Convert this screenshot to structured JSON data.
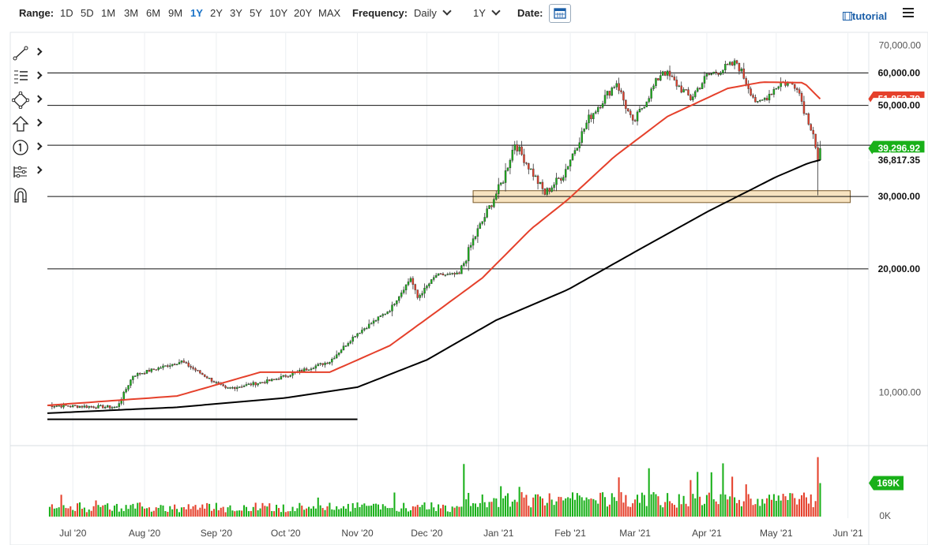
{
  "toolbar": {
    "range_label": "Range:",
    "ranges": [
      "1D",
      "5D",
      "1M",
      "3M",
      "6M",
      "9M",
      "1Y",
      "2Y",
      "3Y",
      "5Y",
      "10Y",
      "20Y",
      "MAX"
    ],
    "active_range": "1Y",
    "frequency_label": "Frequency:",
    "frequency_value": "Daily",
    "period_value": "1Y",
    "date_label": "Date:",
    "tutorial_label": "tutorial"
  },
  "drawing_tools": [
    "line-tool-icon",
    "fib-tool-icon",
    "shape-tool-icon",
    "arrow-up-tool-icon",
    "numbered-marker-icon",
    "ruler-tool-icon",
    "magnet-icon"
  ],
  "colors": {
    "up": "#19b019",
    "down": "#e5402b",
    "ma50": "#e5402b",
    "ma200": "#000000",
    "zone": "#f7e3c0",
    "accent": "#1a73c8"
  },
  "chart_data": [
    {
      "type": "candlestick",
      "y_scale": "log",
      "ylim": [
        8000,
        75000
      ],
      "price_ticks": [
        "70,000.00",
        "60,000.00",
        "50,000.00",
        "10,000.00"
      ],
      "x_ticks": [
        "Jul '20",
        "Aug '20",
        "Sep '20",
        "Oct '20",
        "Nov '20",
        "Dec '20",
        "Jan '21",
        "Feb '21",
        "Mar '21",
        "Apr '21",
        "May '21",
        "Jun '21"
      ],
      "x_range": [
        "2020-06-20",
        "2021-06-10"
      ],
      "horizontal_lines": [
        60000,
        50000,
        40000,
        30000,
        20000
      ],
      "support_zone": {
        "from": 29000,
        "to": 31000,
        "start": "2020-12-21",
        "end": "2021-06-02"
      },
      "trendline": {
        "start": "2020-06-20",
        "end": "2020-11-01",
        "value": 8600
      },
      "price_labels": [
        {
          "text": "60,000.00",
          "value": 60000,
          "style": "level"
        },
        {
          "text": "51,853.79",
          "value": 51853.79,
          "style": "ma50"
        },
        {
          "text": "50,000.00",
          "value": 50000,
          "style": "level"
        },
        {
          "text": "39,296.92",
          "value": 39296.92,
          "style": "last"
        },
        {
          "text": "36,817.35",
          "value": 36817.35,
          "style": "level"
        },
        {
          "text": "30,000.00",
          "value": 30000,
          "style": "level"
        },
        {
          "text": "20,000.00",
          "value": 20000,
          "style": "level"
        }
      ],
      "series": [
        {
          "name": "",
          "kind": "ohlc_anchors",
          "points": [
            [
              "2020-06-20",
              9300
            ],
            [
              "2020-07-20",
              9200
            ],
            [
              "2020-07-27",
              11000
            ],
            [
              "2020-08-17",
              11900
            ],
            [
              "2020-09-05",
              10200
            ],
            [
              "2020-09-25",
              10700
            ],
            [
              "2020-10-20",
              11900
            ],
            [
              "2020-10-31",
              13800
            ],
            [
              "2020-11-15",
              15900
            ],
            [
              "2020-11-24",
              19000
            ],
            [
              "2020-11-27",
              17000
            ],
            [
              "2020-12-05",
              19300
            ],
            [
              "2020-12-15",
              19400
            ],
            [
              "2020-12-21",
              23500
            ],
            [
              "2021-01-03",
              33000
            ],
            [
              "2021-01-08",
              40500
            ],
            [
              "2021-01-21",
              30500
            ],
            [
              "2021-01-29",
              34000
            ],
            [
              "2021-02-09",
              46500
            ],
            [
              "2021-02-21",
              57000
            ],
            [
              "2021-02-28",
              45000
            ],
            [
              "2021-03-13",
              61000
            ],
            [
              "2021-03-25",
              52000
            ],
            [
              "2021-04-01",
              59000
            ],
            [
              "2021-04-14",
              63500
            ],
            [
              "2021-04-23",
              50000
            ],
            [
              "2021-05-03",
              57000
            ],
            [
              "2021-05-10",
              56000
            ],
            [
              "2021-05-13",
              49000
            ],
            [
              "2021-05-17",
              43000
            ],
            [
              "2021-05-19",
              36500
            ],
            [
              "2021-05-20",
              39296.92
            ]
          ]
        },
        {
          "name": "",
          "kind": "moving_average",
          "color": "ma50",
          "points": [
            [
              "2020-06-20",
              9300
            ],
            [
              "2020-08-15",
              9800
            ],
            [
              "2020-09-20",
              11200
            ],
            [
              "2020-10-20",
              11200
            ],
            [
              "2020-11-15",
              13000
            ],
            [
              "2020-12-05",
              15700
            ],
            [
              "2020-12-25",
              19000
            ],
            [
              "2021-01-15",
              25000
            ],
            [
              "2021-01-31",
              29500
            ],
            [
              "2021-02-20",
              37500
            ],
            [
              "2021-03-15",
              47000
            ],
            [
              "2021-04-10",
              55000
            ],
            [
              "2021-04-25",
              57000
            ],
            [
              "2021-05-13",
              56800
            ],
            [
              "2021-05-20",
              51853.79
            ]
          ]
        },
        {
          "name": "",
          "kind": "moving_average",
          "color": "ma200",
          "points": [
            [
              "2020-06-20",
              8900
            ],
            [
              "2020-08-15",
              9200
            ],
            [
              "2020-10-01",
              9700
            ],
            [
              "2020-11-01",
              10300
            ],
            [
              "2020-12-01",
              12000
            ],
            [
              "2020-12-31",
              15000
            ],
            [
              "2021-01-31",
              17800
            ],
            [
              "2021-03-01",
              22000
            ],
            [
              "2021-04-01",
              27500
            ],
            [
              "2021-05-01",
              33500
            ],
            [
              "2021-05-15",
              36200
            ],
            [
              "2021-05-20",
              36817.35
            ]
          ]
        }
      ]
    },
    {
      "type": "bar",
      "title": "",
      "ylim": [
        0,
        350000
      ],
      "y_ticks": [
        "0K"
      ],
      "last_value_label": "169K",
      "last_value": 169000,
      "spikes": [
        [
          "2021-01-10",
          150000
        ],
        [
          "2021-05-19",
          300000
        ]
      ]
    }
  ]
}
